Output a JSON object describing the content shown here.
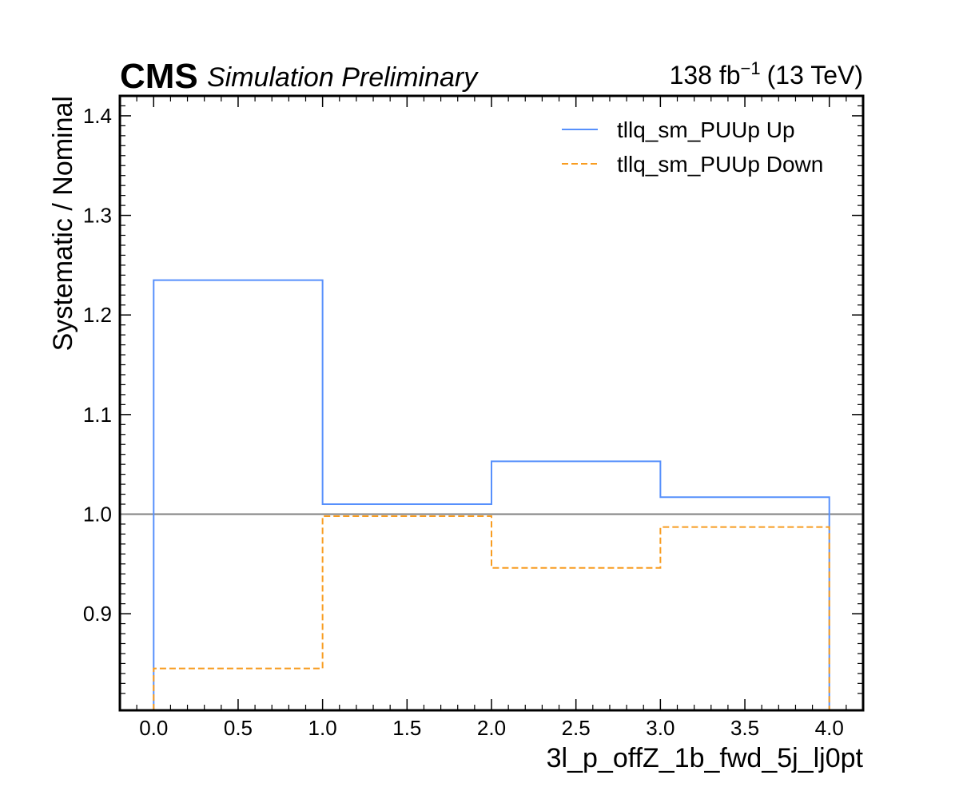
{
  "header": {
    "experiment": "CMS",
    "label": "Simulation Preliminary",
    "lumi_value": "138 fb",
    "lumi_exponent": "−1",
    "lumi_energy": "(13 TeV)"
  },
  "chart_data": {
    "type": "line",
    "drawstyle": "steps",
    "xlabel": "3l_p_offZ_1b_fwd_5j_lj0pt",
    "ylabel": "Systematic / Nominal",
    "xlim": [
      -0.2,
      4.2
    ],
    "ylim": [
      0.803,
      1.42
    ],
    "x_ticks": [
      0.0,
      0.5,
      1.0,
      1.5,
      2.0,
      2.5,
      3.0,
      3.5,
      4.0
    ],
    "x_tick_labels": [
      "0.0",
      "0.5",
      "1.0",
      "1.5",
      "2.0",
      "2.5",
      "3.0",
      "3.5",
      "4.0"
    ],
    "y_ticks": [
      0.9,
      1.0,
      1.1,
      1.2,
      1.3,
      1.4
    ],
    "y_tick_labels": [
      "0.9",
      "1.0",
      "1.1",
      "1.2",
      "1.3",
      "1.4"
    ],
    "bin_edges": [
      0,
      1,
      2,
      3,
      4
    ],
    "reference_line": {
      "y": 1.0,
      "color": "#808080"
    },
    "series": [
      {
        "name": "tllq_sm_PUUp Up",
        "values": [
          1.235,
          1.01,
          1.053,
          1.017
        ],
        "color": "#5790fc",
        "dash": "solid"
      },
      {
        "name": "tllq_sm_PUUp Down",
        "values": [
          0.845,
          0.998,
          0.946,
          0.987
        ],
        "color": "#f89c20",
        "dash": "dashed"
      }
    ],
    "legend_position": "top-right",
    "grid": false
  }
}
